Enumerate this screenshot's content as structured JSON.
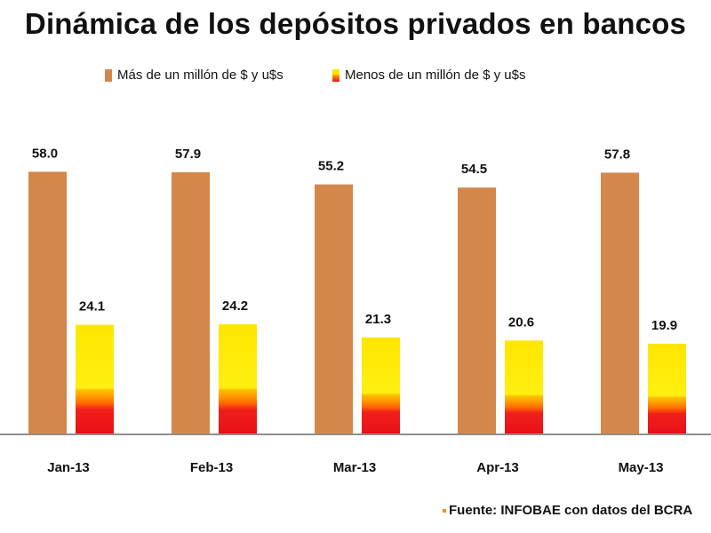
{
  "title": "Dinámica de los depósitos privados en bancos",
  "source": "Fuente: INFOBAE con datos del BCRA",
  "chart_data": {
    "type": "bar",
    "title": "Dinámica de los depósitos privados en bancos",
    "xlabel": "",
    "ylabel": "",
    "ylim": [
      0,
      60
    ],
    "legend_position": "top",
    "categories": [
      "Jan-13",
      "Feb-13",
      "Mar-13",
      "Apr-13",
      "May-13"
    ],
    "series": [
      {
        "name": "Más de  un millón de $ y u$s",
        "values": [
          58.0,
          57.9,
          55.2,
          54.5,
          57.8
        ],
        "color": "#D4874A"
      },
      {
        "name": "Menos de  un millón de $ y u$s",
        "values": [
          24.1,
          24.2,
          21.3,
          20.6,
          19.9
        ],
        "color": "#FFE600"
      }
    ],
    "labels": [
      [
        "58.0",
        "57.9",
        "55.2",
        "54.5",
        "57.8"
      ],
      [
        "24.1",
        "24.2",
        "21.3",
        "20.6",
        "19.9"
      ]
    ]
  }
}
